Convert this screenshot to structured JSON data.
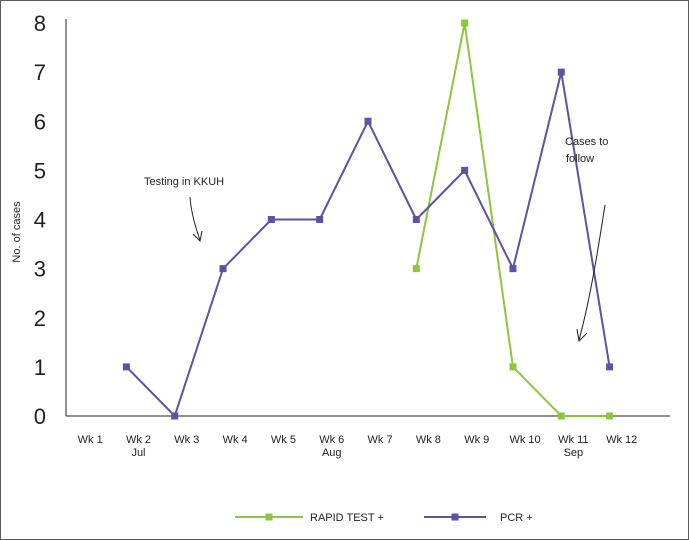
{
  "chart_data": {
    "type": "line",
    "ylabel": "No. of cases",
    "ylim": [
      0,
      8
    ],
    "y_ticks": [
      "0",
      "1",
      "2",
      "3",
      "4",
      "5",
      "6",
      "7",
      "8"
    ],
    "x_ticks": [
      {
        "label": "Wk 1",
        "sub": ""
      },
      {
        "label": "Wk 2",
        "sub": "Jul"
      },
      {
        "label": "Wk 3",
        "sub": ""
      },
      {
        "label": "Wk 4",
        "sub": ""
      },
      {
        "label": "Wk 5",
        "sub": ""
      },
      {
        "label": "Wk 6",
        "sub": "Aug"
      },
      {
        "label": "Wk 7",
        "sub": ""
      },
      {
        "label": "Wk 8",
        "sub": ""
      },
      {
        "label": "Wk 9",
        "sub": ""
      },
      {
        "label": "Wk 10",
        "sub": ""
      },
      {
        "label": "Wk 11",
        "sub": "Sep"
      },
      {
        "label": "Wk 12",
        "sub": ""
      }
    ],
    "series": [
      {
        "name": "RAPID TEST +",
        "color": "#8dc63f",
        "points": [
          {
            "x": 6.75,
            "y": 3
          },
          {
            "x": 7.75,
            "y": 8
          },
          {
            "x": 8.75,
            "y": 1
          },
          {
            "x": 9.75,
            "y": 0
          },
          {
            "x": 10.75,
            "y": 0
          }
        ]
      },
      {
        "name": "PCR +",
        "color": "#5b53a5",
        "points": [
          {
            "x": 0.75,
            "y": 1
          },
          {
            "x": 1.75,
            "y": 0
          },
          {
            "x": 2.75,
            "y": 3
          },
          {
            "x": 3.75,
            "y": 4
          },
          {
            "x": 4.75,
            "y": 4
          },
          {
            "x": 5.75,
            "y": 6
          },
          {
            "x": 6.75,
            "y": 4
          },
          {
            "x": 7.75,
            "y": 5
          },
          {
            "x": 8.75,
            "y": 3
          },
          {
            "x": 9.75,
            "y": 7
          },
          {
            "x": 10.75,
            "y": 1
          }
        ]
      }
    ],
    "annotations": [
      {
        "lines": [
          "Testing in KKUH"
        ]
      },
      {
        "lines": [
          "Cases to",
          "follow"
        ]
      }
    ],
    "legend_position": "bottom-center"
  }
}
